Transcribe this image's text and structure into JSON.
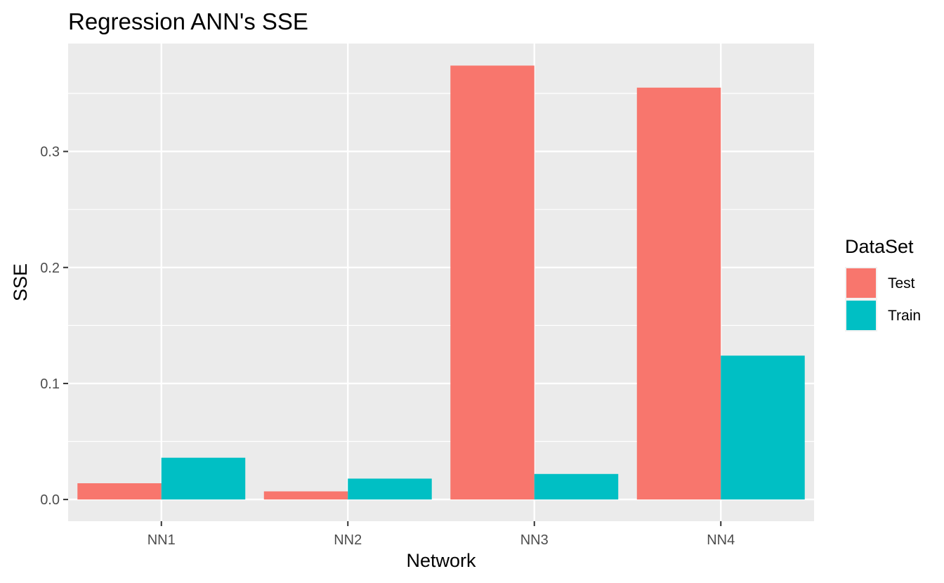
{
  "chart_data": {
    "type": "bar",
    "title": "Regression ANN's SSE",
    "xlabel": "Network",
    "ylabel": "SSE",
    "categories": [
      "NN1",
      "NN2",
      "NN3",
      "NN4"
    ],
    "series": [
      {
        "name": "Test",
        "color": "#F8766D",
        "values": [
          0.014,
          0.007,
          0.374,
          0.355
        ]
      },
      {
        "name": "Train",
        "color": "#00BFC4",
        "values": [
          0.036,
          0.018,
          0.022,
          0.124
        ]
      }
    ],
    "ylim": [
      -0.0187,
      0.393
    ],
    "yticks": [
      0.0,
      0.1,
      0.2,
      0.3
    ],
    "ytick_labels": [
      "0.0",
      "0.1",
      "0.2",
      "0.3"
    ],
    "grid": true,
    "legend": {
      "title": "DataSet",
      "position": "right"
    },
    "panel_background": "#EBEBEB",
    "grid_color": "#FFFFFF"
  }
}
